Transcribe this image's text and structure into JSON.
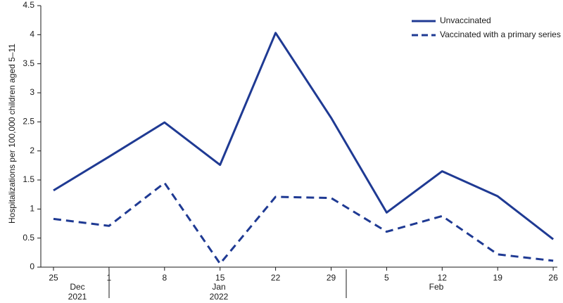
{
  "chart_data": {
    "type": "line",
    "y_label": "Hospitalizations per 100,000 children aged 5–11",
    "categories": [
      "25",
      "1",
      "8",
      "15",
      "22",
      "29",
      "5",
      "12",
      "19",
      "26"
    ],
    "month_labels": [
      "Dec",
      "Jan",
      "Feb"
    ],
    "year_labels": [
      "2021",
      "2022"
    ],
    "series": [
      {
        "name": "Unvaccinated",
        "color": "#1f3a93",
        "line_style": "solid",
        "values": [
          1.32,
          1.9,
          2.49,
          1.76,
          4.03,
          2.57,
          0.94,
          1.65,
          1.22,
          0.48
        ]
      },
      {
        "name": "Vaccinated with a primary series",
        "color": "#1f3a93",
        "line_style": "dashed",
        "values": [
          0.83,
          0.71,
          1.45,
          0.06,
          1.21,
          1.19,
          0.61,
          0.88,
          0.22,
          0.11
        ]
      }
    ],
    "ylim": [
      0,
      4.5
    ],
    "yticks": [
      0,
      0.5,
      1,
      1.5,
      2,
      2.5,
      3,
      3.5,
      4,
      4.5
    ],
    "legend": "upper right"
  }
}
